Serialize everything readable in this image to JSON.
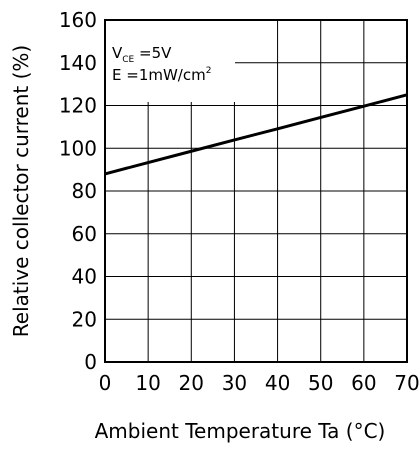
{
  "chart_data": {
    "type": "line",
    "xlabel": "Ambient Temperature Ta (°C)",
    "ylabel": "Relative collector current (%)",
    "xlim": [
      0,
      70
    ],
    "ylim": [
      0,
      160
    ],
    "x_ticks": [
      "0",
      "10",
      "20",
      "30",
      "40",
      "50",
      "60",
      "70"
    ],
    "y_ticks": [
      "0",
      "20",
      "40",
      "60",
      "80",
      "100",
      "120",
      "140",
      "160"
    ],
    "grid": true,
    "series": [
      {
        "x": [
          0,
          10,
          20,
          30,
          40,
          50,
          60,
          70
        ],
        "y": [
          88,
          93.3,
          98.6,
          103.9,
          109.1,
          114.4,
          119.7,
          125
        ]
      }
    ],
    "annotations": {
      "vce_main": "V",
      "vce_sub": "CE",
      "vce_value": " =5V",
      "e_main": "E =1mW/cm",
      "e_sup": "2"
    }
  }
}
